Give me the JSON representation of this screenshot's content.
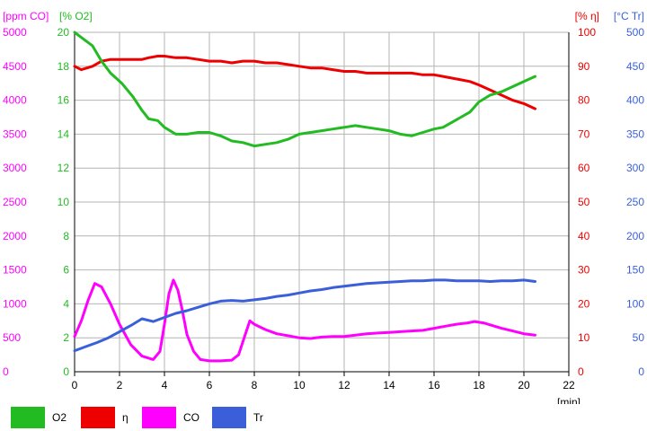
{
  "chart_data": {
    "type": "line",
    "grid": true,
    "x_unit_label": "[min]",
    "xlim": [
      0,
      22
    ],
    "x_ticks": [
      "0",
      "2",
      "4",
      "6",
      "8",
      "10",
      "12",
      "14",
      "16",
      "18",
      "20",
      "22"
    ],
    "axes": [
      {
        "id": "co",
        "label": "[ppm CO]",
        "side": "left",
        "color": "#ff00ff",
        "lim": [
          0,
          5000
        ],
        "ticks": [
          "0",
          "500",
          "1000",
          "1500",
          "2000",
          "2500",
          "3000",
          "3500",
          "4000",
          "4500",
          "5000"
        ]
      },
      {
        "id": "o2",
        "label": "[% O2]",
        "side": "left",
        "color": "#22bb22",
        "lim": [
          0,
          20
        ],
        "ticks": [
          "0",
          "2",
          "4",
          "6",
          "8",
          "10",
          "12",
          "14",
          "16",
          "18",
          "20"
        ]
      },
      {
        "id": "eta",
        "label": "[% η]",
        "side": "right",
        "color": "#ee0000",
        "lim": [
          0,
          100
        ],
        "ticks": [
          "0",
          "10",
          "20",
          "30",
          "40",
          "50",
          "60",
          "70",
          "80",
          "90",
          "100"
        ]
      },
      {
        "id": "tr",
        "label": "[°C Tr]",
        "side": "right",
        "color": "#3b5fd9",
        "lim": [
          0,
          500
        ],
        "ticks": [
          "0",
          "50",
          "100",
          "150",
          "200",
          "250",
          "300",
          "350",
          "400",
          "450",
          "500"
        ]
      }
    ],
    "series": [
      {
        "name": "O2",
        "axis": "o2",
        "color": "#22bb22",
        "x": [
          0,
          0.3,
          0.8,
          1.2,
          1.6,
          2.1,
          2.6,
          3.0,
          3.3,
          3.7,
          4.0,
          4.5,
          5.0,
          5.5,
          6.0,
          6.5,
          7.0,
          7.5,
          8.0,
          8.5,
          9.0,
          9.5,
          10.0,
          10.5,
          11.0,
          11.5,
          12.0,
          12.5,
          13.0,
          13.5,
          14.0,
          14.5,
          15.0,
          15.5,
          16.0,
          16.4,
          16.8,
          17.2,
          17.6,
          18.0,
          18.5,
          19.0,
          19.5,
          20.0,
          20.5
        ],
        "y": [
          20,
          19.7,
          19.2,
          18.3,
          17.6,
          17.0,
          16.2,
          15.4,
          14.9,
          14.8,
          14.4,
          14.0,
          14.0,
          14.1,
          14.1,
          13.9,
          13.6,
          13.5,
          13.3,
          13.4,
          13.5,
          13.7,
          14.0,
          14.1,
          14.2,
          14.3,
          14.4,
          14.5,
          14.4,
          14.3,
          14.2,
          14.0,
          13.9,
          14.1,
          14.3,
          14.4,
          14.7,
          15.0,
          15.3,
          15.9,
          16.3,
          16.5,
          16.8,
          17.1,
          17.4
        ]
      },
      {
        "name": "η",
        "axis": "eta",
        "color": "#ee0000",
        "x": [
          0,
          0.3,
          0.8,
          1.2,
          1.6,
          2.1,
          2.6,
          3.0,
          3.3,
          3.7,
          4.0,
          4.5,
          5.0,
          5.5,
          6.0,
          6.5,
          7.0,
          7.5,
          8.0,
          8.5,
          9.0,
          9.5,
          10.0,
          10.5,
          11.0,
          11.5,
          12.0,
          12.5,
          13.0,
          13.5,
          14.0,
          14.5,
          15.0,
          15.5,
          16.0,
          16.4,
          16.8,
          17.2,
          17.6,
          18.0,
          18.5,
          19.0,
          19.5,
          20.0,
          20.5
        ],
        "y": [
          90,
          89,
          90,
          91.5,
          92,
          92,
          92,
          92,
          92.5,
          93,
          93,
          92.5,
          92.5,
          92,
          91.5,
          91.5,
          91,
          91.5,
          91.5,
          91,
          91,
          90.5,
          90,
          89.5,
          89.5,
          89,
          88.5,
          88.5,
          88,
          88,
          88,
          88,
          88,
          87.5,
          87.5,
          87,
          86.5,
          86,
          85.5,
          84.5,
          83,
          81.5,
          80,
          79,
          77.5
        ]
      },
      {
        "name": "CO",
        "axis": "co",
        "color": "#ff00ff",
        "x": [
          0,
          0.3,
          0.6,
          0.9,
          1.2,
          1.6,
          2.0,
          2.5,
          3.0,
          3.5,
          3.8,
          4.0,
          4.2,
          4.4,
          4.6,
          4.8,
          5.0,
          5.3,
          5.6,
          6.0,
          6.5,
          7.0,
          7.3,
          7.6,
          7.8,
          8.0,
          8.5,
          9.0,
          9.5,
          10.0,
          10.5,
          11.0,
          11.5,
          12.0,
          12.5,
          13.0,
          13.5,
          14.0,
          14.5,
          15.0,
          15.5,
          16.0,
          16.5,
          17.0,
          17.5,
          17.8,
          18.2,
          18.6,
          19.0,
          19.5,
          20.0,
          20.5
        ],
        "y": [
          520,
          750,
          1050,
          1300,
          1250,
          1000,
          700,
          400,
          230,
          180,
          300,
          700,
          1150,
          1350,
          1200,
          900,
          550,
          300,
          180,
          160,
          160,
          170,
          250,
          550,
          750,
          700,
          620,
          560,
          530,
          500,
          490,
          510,
          520,
          520,
          540,
          560,
          570,
          580,
          590,
          600,
          610,
          640,
          670,
          700,
          720,
          740,
          720,
          680,
          640,
          600,
          560,
          540
        ]
      },
      {
        "name": "Tr",
        "axis": "tr",
        "color": "#3b5fd9",
        "x": [
          0,
          0.5,
          1.0,
          1.5,
          2.0,
          2.5,
          3.0,
          3.5,
          4.0,
          4.5,
          5.0,
          5.5,
          6.0,
          6.5,
          7.0,
          7.5,
          8.0,
          8.5,
          9.0,
          9.5,
          10.0,
          10.5,
          11.0,
          11.5,
          12.0,
          12.5,
          13.0,
          13.5,
          14.0,
          14.5,
          15.0,
          15.5,
          16.0,
          16.5,
          17.0,
          17.5,
          18.0,
          18.5,
          19.0,
          19.5,
          20.0,
          20.5
        ],
        "y": [
          31,
          37,
          43,
          50,
          59,
          68,
          78,
          74,
          80,
          86,
          90,
          95,
          100,
          104,
          105,
          104,
          106,
          108,
          111,
          113,
          116,
          119,
          121,
          124,
          126,
          128,
          130,
          131,
          132,
          133,
          134,
          134,
          135,
          135,
          134,
          134,
          134,
          133,
          134,
          134,
          135,
          133
        ]
      }
    ]
  }
}
